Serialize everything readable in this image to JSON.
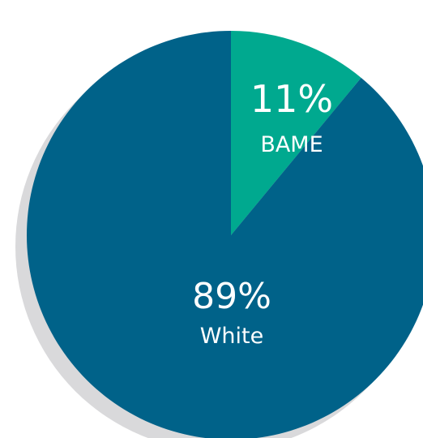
{
  "chart_data": {
    "type": "pie",
    "slices": [
      {
        "label": "BAME",
        "value": 11,
        "value_label": "11%",
        "color": "#00a98f"
      },
      {
        "label": "White",
        "value": 89,
        "value_label": "89%",
        "color": "#006289"
      }
    ],
    "start_angle": "12 o'clock, clockwise",
    "shadow_color": "#d9d9db",
    "legend": "none (labels inside slices)"
  }
}
